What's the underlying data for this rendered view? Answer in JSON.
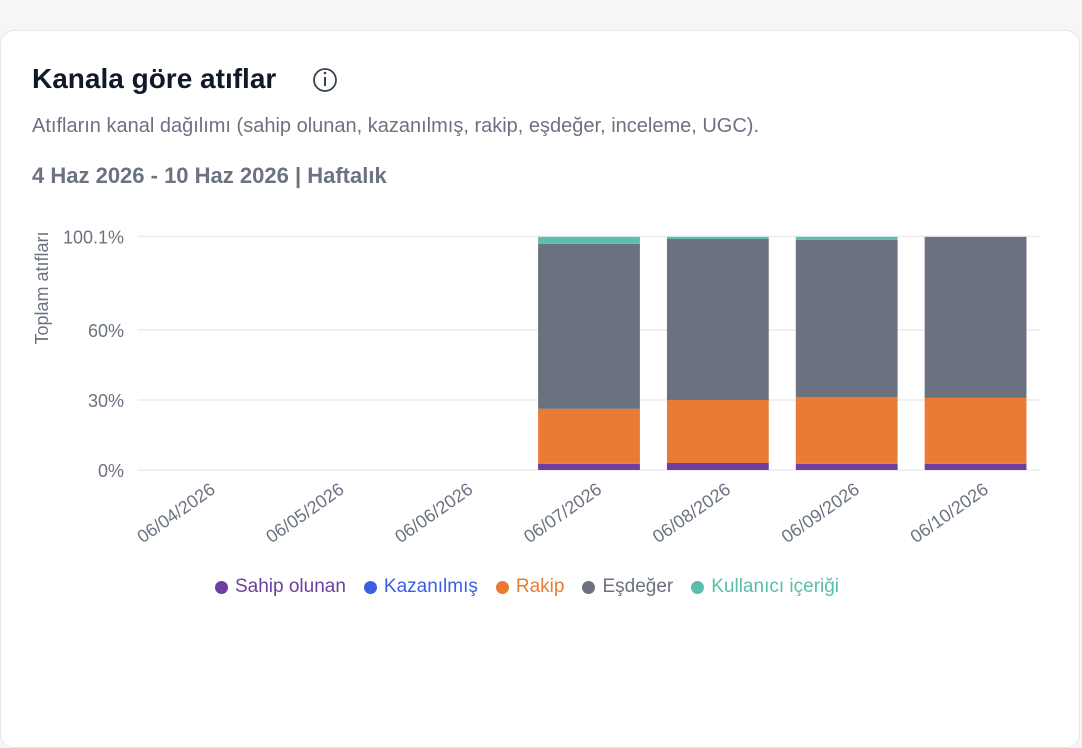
{
  "chart_data": {
    "type": "stacked-bar",
    "title": "Kanala göre atıflar",
    "subtitle": "Atıfların kanal dağılımı (sahip olunan, kazanılmış, rakip, eşdeğer, inceleme, UGC).",
    "period": "4 Haz 2026 - 10 Haz 2026 | Haftalık",
    "y_label": "Toplam atıfları",
    "categories": [
      "06/04/2026",
      "06/05/2026",
      "06/06/2026",
      "06/07/2026",
      "06/08/2026",
      "06/09/2026",
      "06/10/2026"
    ],
    "series": [
      {
        "name": "Sahip olunan",
        "color": "#6d3f9e",
        "values": [
          null,
          null,
          null,
          2.6,
          3.0,
          2.6,
          2.6
        ]
      },
      {
        "name": "Kazanılmış",
        "color": "#3b5fe0",
        "values": [
          null,
          null,
          null,
          0,
          0,
          0,
          0
        ]
      },
      {
        "name": "Rakip",
        "color": "#ea7b34",
        "values": [
          null,
          null,
          null,
          23.6,
          27.0,
          28.7,
          28.3
        ]
      },
      {
        "name": "Eşdeğer",
        "color": "#6b717e",
        "values": [
          null,
          null,
          null,
          70.7,
          69.0,
          67.3,
          69.0
        ]
      },
      {
        "name": "Kullanıcı içeriği",
        "color": "#5bbdab",
        "values": [
          null,
          null,
          null,
          3.0,
          0.9,
          1.3,
          0
        ]
      }
    ],
    "ylim": [
      0,
      100.1
    ],
    "yticks": [
      {
        "value": 0,
        "label": "0%"
      },
      {
        "value": 30,
        "label": "30%"
      },
      {
        "value": 60,
        "label": "60%"
      },
      {
        "value": 100.1,
        "label": "100.1%"
      }
    ],
    "grid": true
  }
}
